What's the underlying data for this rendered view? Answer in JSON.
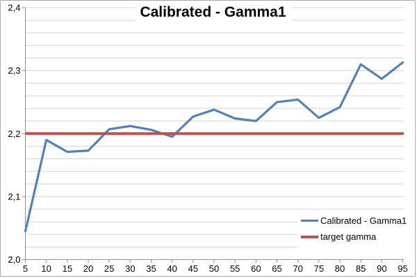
{
  "chart": {
    "title": "Calibrated - Gamma1"
  },
  "chart_data": {
    "type": "line",
    "title": "Calibrated - Gamma1",
    "x": [
      5,
      10,
      15,
      20,
      25,
      30,
      35,
      40,
      45,
      50,
      55,
      60,
      65,
      70,
      75,
      80,
      85,
      90,
      95
    ],
    "x_tick_labels": [
      "5",
      "10",
      "15",
      "20",
      "25",
      "30",
      "35",
      "40",
      "45",
      "50",
      "55",
      "60",
      "65",
      "70",
      "75",
      "80",
      "85",
      "90",
      "95"
    ],
    "series": [
      {
        "name": "Calibrated - Gamma1",
        "color": "#4F81BD",
        "line_width": 3.2,
        "values": [
          2.045,
          2.19,
          2.171,
          2.173,
          2.207,
          2.212,
          2.206,
          2.195,
          2.227,
          2.238,
          2.224,
          2.22,
          2.25,
          2.254,
          2.225,
          2.242,
          2.31,
          2.287,
          2.313
        ]
      },
      {
        "name": "target gamma",
        "color": "#C0504D",
        "line_width": 4,
        "constant": 2.2
      }
    ],
    "ylim": [
      2.0,
      2.4
    ],
    "y_major_ticks": [
      {
        "value": 2.0,
        "label": "2,0"
      },
      {
        "value": 2.1,
        "label": "2,1"
      },
      {
        "value": 2.2,
        "label": "2,2"
      },
      {
        "value": 2.3,
        "label": "2,3"
      },
      {
        "value": 2.4,
        "label": "2,4"
      }
    ],
    "minor_grid_step": 0.02,
    "grid": true,
    "legend_position": "inside-bottom-right",
    "colors": {
      "grid": "#D4D4D4",
      "axis": "#8F8F8F",
      "background": "#FFFFFF",
      "border": "#A9A9A9",
      "text": "#000000"
    }
  }
}
